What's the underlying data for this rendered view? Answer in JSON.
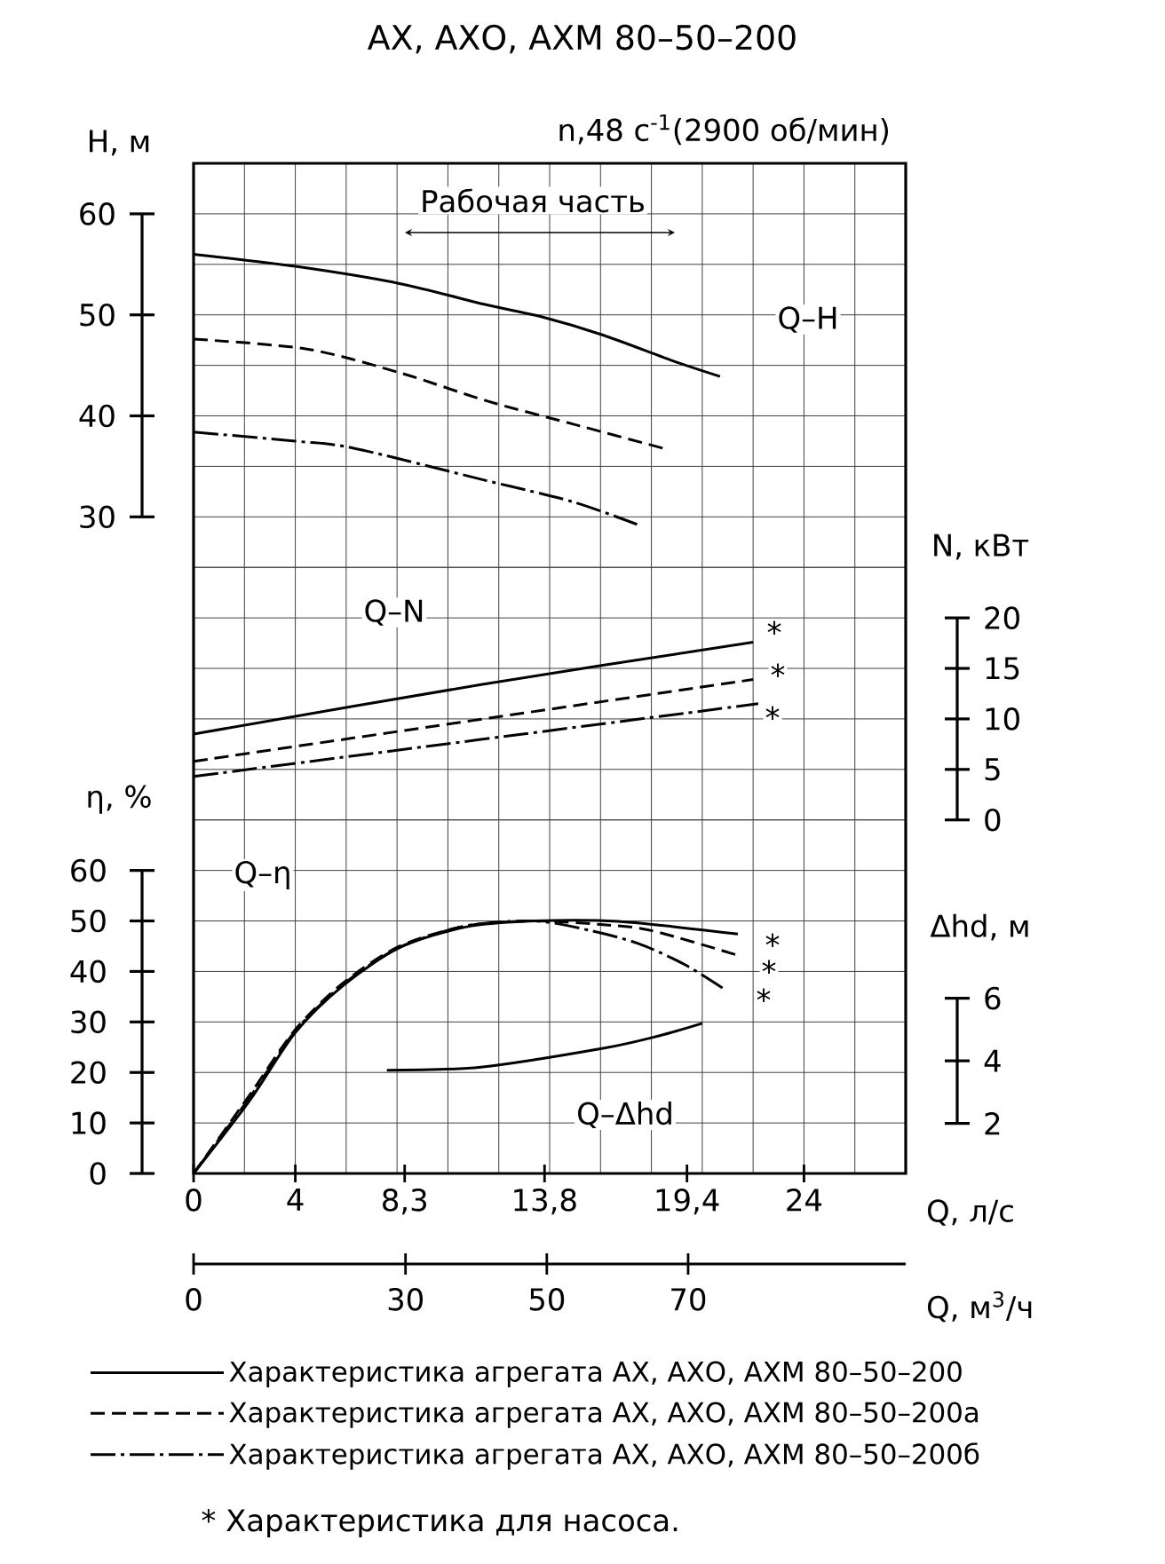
{
  "chart_data": [
    {
      "type": "line",
      "title": "АХ, АХО, АХМ 80–50–200",
      "subtitle": "n,48 с$^{-1}$(2900 об/мин)",
      "ylabel": "H, м",
      "xlim": [
        0,
        28
      ],
      "ylim": [
        25,
        65
      ],
      "yticks": [
        30,
        40,
        50,
        60
      ],
      "tick_labels": "y",
      "grid": true,
      "annotations": [
        "Рабочая часть",
        "Q–H"
      ],
      "series": [
        {
          "color": "#000000",
          "line_style": "solid",
          "x": [
            0,
            4,
            8.1,
            11.5,
            13.7,
            16.1,
            18.9,
            20.7
          ],
          "values": [
            56,
            54.8,
            53.1,
            51,
            49.8,
            48,
            45.4,
            43.9
          ]
        },
        {
          "color": "#000000",
          "line_style": "dashed",
          "x": [
            0,
            4.5,
            8.2,
            11.5,
            14.9,
            18.6
          ],
          "values": [
            47.6,
            46.6,
            44.2,
            41.5,
            39.2,
            36.7
          ]
        },
        {
          "color": "#000000",
          "line_style": "dashdot",
          "x": [
            0,
            4,
            6.3,
            11.5,
            14.9,
            17.5
          ],
          "values": [
            38.4,
            37.5,
            36.8,
            33.6,
            31.5,
            29.2
          ]
        }
      ]
    },
    {
      "type": "line",
      "y2label": "N, кВт",
      "xlim": [
        0,
        28
      ],
      "y2lim": [
        0,
        25
      ],
      "y2ticks": [
        0,
        5,
        10,
        15,
        20
      ],
      "tick_labels": "y",
      "grid": true,
      "annotations": [
        "Q–N",
        "*",
        "*",
        "*"
      ],
      "series": [
        {
          "color": "#000000",
          "line_style": "solid",
          "axis": "y2",
          "x": [
            0,
            11.3,
            22
          ],
          "values": [
            8.5,
            13.4,
            17.6
          ]
        },
        {
          "color": "#000000",
          "line_style": "dashed",
          "axis": "y2",
          "x": [
            0,
            22
          ],
          "values": [
            5.8,
            13.9
          ]
        },
        {
          "color": "#000000",
          "line_style": "dashdot",
          "axis": "y2",
          "x": [
            0,
            22.2
          ],
          "values": [
            4.3,
            11.5
          ]
        }
      ]
    },
    {
      "type": "line",
      "xlabel": "Q, л/с",
      "ylabel": "η, %",
      "y2label": "Δhd, м",
      "x2label": "Q, м$^{3}$/ч",
      "xlim": [
        0,
        28
      ],
      "xticks": [
        0,
        4,
        {
          "value": 8.3,
          "label": "8,3"
        },
        {
          "value": 13.8,
          "label": "13,8"
        },
        {
          "value": 19.4,
          "label": "19,4"
        },
        24
      ],
      "x2lim": [
        0,
        100.8
      ],
      "x2ticks": [
        0,
        30,
        50,
        70
      ],
      "ylim": [
        0,
        70
      ],
      "yticks": [
        0,
        10,
        20,
        30,
        40,
        50,
        60
      ],
      "y2lim": [
        0.4,
        11.7
      ],
      "y2ticks": [
        2,
        4,
        6
      ],
      "grid": true,
      "legend": "bottom",
      "annotations": [
        "Q–η",
        "Q–Δhd",
        "* Характеристика для насоса.",
        "*",
        "*",
        "*"
      ],
      "series": [
        {
          "name": "Характеристика агрегата АХ, АХО, АХМ 80–50–200",
          "color": "#000000",
          "line_style": "solid",
          "x": [
            0,
            2.2,
            4,
            5.9,
            8.1,
            10.7,
            13.4,
            16.7,
            21.4
          ],
          "values": [
            0,
            14.4,
            27.9,
            37.3,
            44.7,
            48.8,
            50,
            49.9,
            47.4
          ]
        },
        {
          "name": "Характеристика агрегата АХ, АХО, АХМ 80–50–200а",
          "color": "#000000",
          "line_style": "dashed",
          "x": [
            0,
            2.2,
            4,
            5.9,
            8.1,
            10.7,
            13.4,
            16,
            18,
            21.4
          ],
          "values": [
            0,
            15.5,
            28.5,
            37.8,
            45,
            49,
            50,
            49.3,
            48.1,
            43.2
          ]
        },
        {
          "name": "Характеристика агрегата АХ, АХО, АХМ 80–50–200б",
          "color": "#000000",
          "line_style": "dashdot",
          "x": [
            0,
            2.2,
            4,
            5.9,
            8.1,
            10.7,
            13.4,
            15.6,
            17.5,
            19.3,
            20.8
          ],
          "values": [
            0,
            15,
            28.2,
            37.5,
            44.8,
            49,
            50,
            48.1,
            45.5,
            41.4,
            36.7
          ]
        },
        {
          "color": "#000000",
          "line_style": "solid",
          "axis": "y2",
          "x": [
            7.6,
            11.3,
            16.1,
            18.3,
            20.0
          ],
          "values": [
            3.7,
            3.8,
            4.4,
            4.8,
            5.2
          ]
        }
      ]
    }
  ]
}
